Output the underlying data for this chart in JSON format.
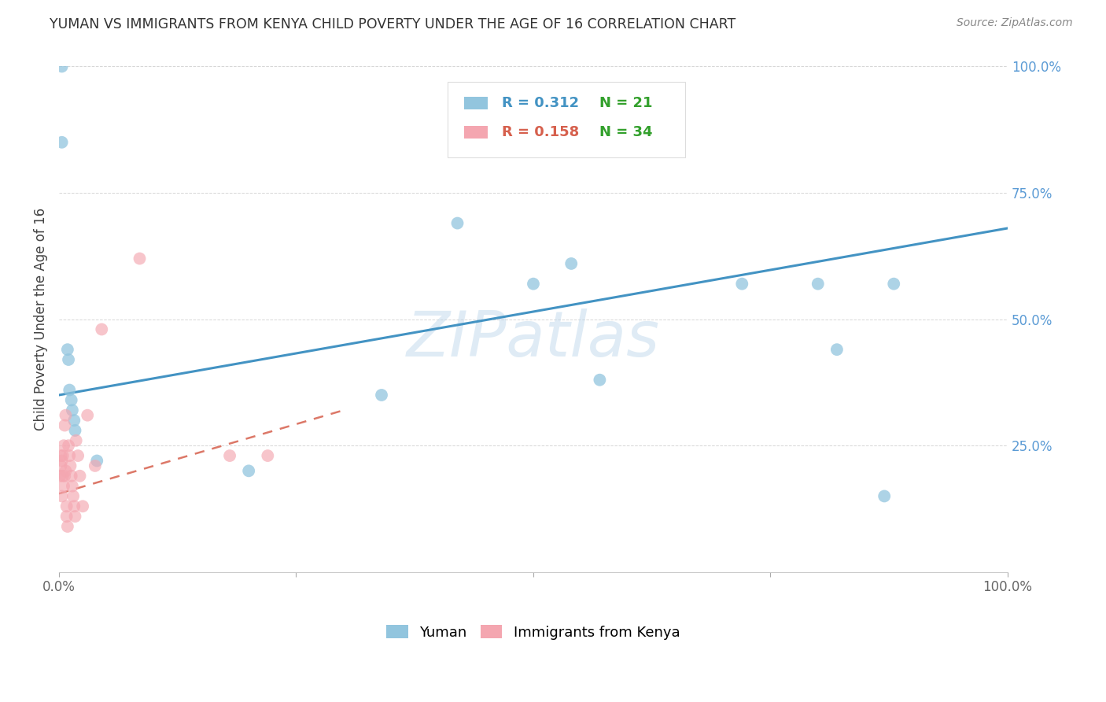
{
  "title": "YUMAN VS IMMIGRANTS FROM KENYA CHILD POVERTY UNDER THE AGE OF 16 CORRELATION CHART",
  "source": "Source: ZipAtlas.com",
  "ylabel": "Child Poverty Under the Age of 16",
  "watermark": "ZIPatlas",
  "blue_label": "Yuman",
  "pink_label": "Immigrants from Kenya",
  "blue_R": 0.312,
  "blue_N": 21,
  "pink_R": 0.158,
  "pink_N": 34,
  "blue_color": "#92c5de",
  "pink_color": "#f4a6b0",
  "blue_line_color": "#4393c3",
  "pink_line_color": "#d6604d",
  "blue_R_color": "#4393c3",
  "pink_R_color": "#d6604d",
  "N_color": "#33a02c",
  "background_color": "#ffffff",
  "grid_color": "#cccccc",
  "blue_points_x": [
    0.003,
    0.003,
    0.009,
    0.01,
    0.011,
    0.013,
    0.014,
    0.016,
    0.017,
    0.04,
    0.5,
    0.54,
    0.57,
    0.72,
    0.8,
    0.82,
    0.87,
    0.88,
    0.2,
    0.34,
    0.42
  ],
  "blue_points_y": [
    1.0,
    0.85,
    0.44,
    0.42,
    0.36,
    0.34,
    0.32,
    0.3,
    0.28,
    0.22,
    0.57,
    0.61,
    0.38,
    0.57,
    0.57,
    0.44,
    0.15,
    0.57,
    0.2,
    0.35,
    0.69
  ],
  "pink_points_x": [
    0.001,
    0.002,
    0.002,
    0.003,
    0.003,
    0.004,
    0.004,
    0.005,
    0.005,
    0.006,
    0.006,
    0.007,
    0.007,
    0.008,
    0.008,
    0.009,
    0.01,
    0.011,
    0.012,
    0.013,
    0.014,
    0.015,
    0.016,
    0.017,
    0.018,
    0.02,
    0.022,
    0.025,
    0.03,
    0.038,
    0.045,
    0.085,
    0.18,
    0.22
  ],
  "pink_points_y": [
    0.19,
    0.21,
    0.23,
    0.22,
    0.15,
    0.19,
    0.23,
    0.25,
    0.17,
    0.19,
    0.29,
    0.31,
    0.2,
    0.11,
    0.13,
    0.09,
    0.25,
    0.23,
    0.21,
    0.19,
    0.17,
    0.15,
    0.13,
    0.11,
    0.26,
    0.23,
    0.19,
    0.13,
    0.31,
    0.21,
    0.48,
    0.62,
    0.23,
    0.23
  ],
  "blue_line_x0": 0.0,
  "blue_line_x1": 1.0,
  "blue_line_y0": 0.35,
  "blue_line_y1": 0.68,
  "pink_line_x0": 0.0,
  "pink_line_x1": 0.3,
  "pink_line_y0": 0.155,
  "pink_line_y1": 0.32,
  "xmin": 0.0,
  "xmax": 1.0,
  "ymin": 0.0,
  "ymax": 1.0
}
